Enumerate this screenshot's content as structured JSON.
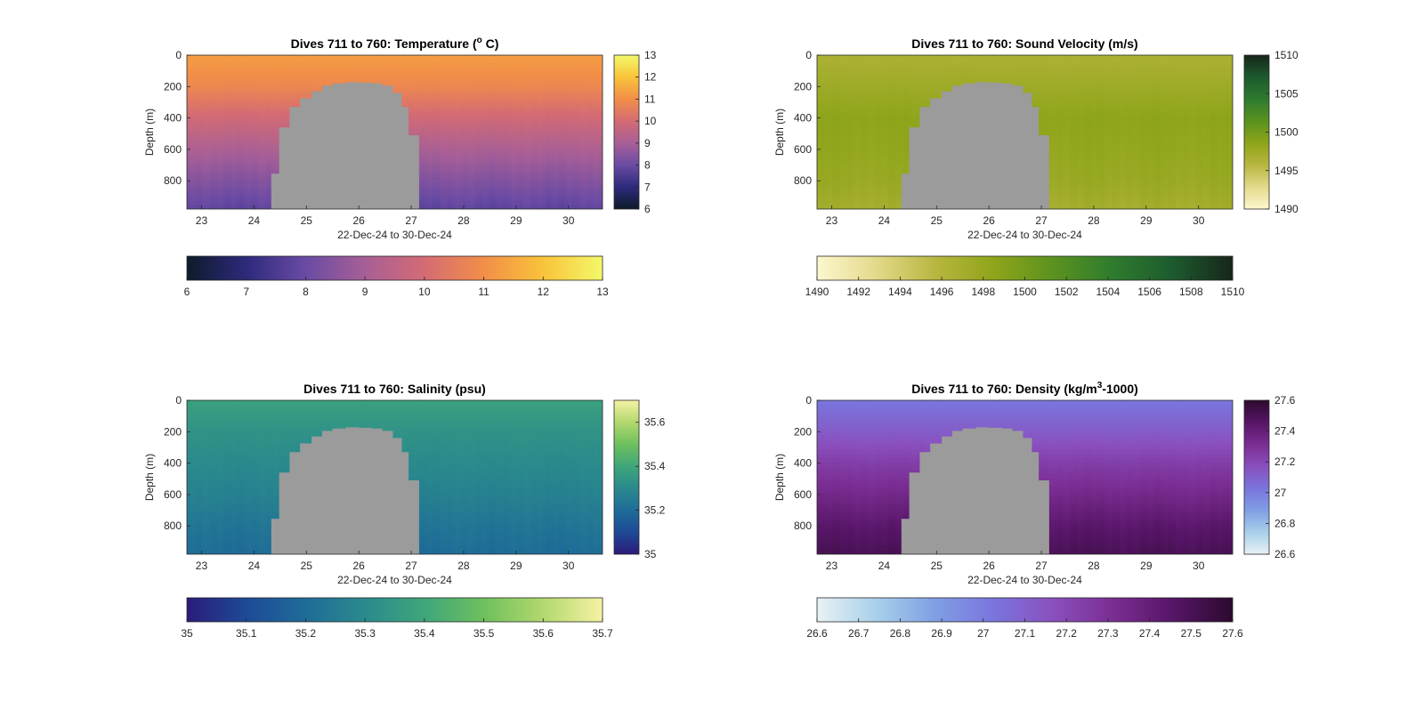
{
  "chart_data": [
    {
      "type": "heatmap",
      "variable": "temperature",
      "title": {
        "prefix": "Dives 711 to 760: Temperature (",
        "sup": "o",
        "suffix": " C)"
      },
      "xlabel": "22-Dec-24 to 30-Dec-24",
      "ylabel": "Depth (m)",
      "xlim": [
        22.72,
        30.65
      ],
      "ylim": [
        0,
        980
      ],
      "y_reversed": true,
      "x_ticks": [
        "23",
        "24",
        "25",
        "26",
        "27",
        "28",
        "29",
        "30"
      ],
      "y_ticks": [
        "0",
        "200",
        "400",
        "600",
        "800"
      ],
      "colorbar_right_ticks": [
        "13",
        "12",
        "11",
        "10",
        "9",
        "8",
        "7",
        "6"
      ],
      "colorbar_bottom_ticks": [
        "6",
        "7",
        "8",
        "9",
        "10",
        "11",
        "12",
        "13"
      ],
      "clim": [
        6,
        13
      ],
      "colormap": [
        "#0d1b2a",
        "#2d2a7c",
        "#6a4ba4",
        "#a75f96",
        "#d46b74",
        "#f28e48",
        "#f9c33a",
        "#f4f86a"
      ],
      "profile": [
        {
          "depth": 0,
          "value": 11.3
        },
        {
          "depth": 200,
          "value": 10.8
        },
        {
          "depth": 400,
          "value": 9.9
        },
        {
          "depth": 600,
          "value": 9.1
        },
        {
          "depth": 800,
          "value": 8.4
        },
        {
          "depth": 980,
          "value": 7.8
        }
      ],
      "no_data_color": "#9b9b9b"
    },
    {
      "type": "heatmap",
      "variable": "sound_velocity",
      "title": {
        "prefix": "Dives 711 to 760: Sound Velocity (m/s)",
        "sup": "",
        "suffix": ""
      },
      "xlabel": "22-Dec-24 to 30-Dec-24",
      "ylabel": "Depth (m)",
      "xlim": [
        22.72,
        30.65
      ],
      "ylim": [
        0,
        980
      ],
      "y_reversed": true,
      "x_ticks": [
        "23",
        "24",
        "25",
        "26",
        "27",
        "28",
        "29",
        "30"
      ],
      "y_ticks": [
        "0",
        "200",
        "400",
        "600",
        "800"
      ],
      "colorbar_right_ticks": [
        "1510",
        "1505",
        "1500",
        "1495",
        "1490"
      ],
      "colorbar_bottom_ticks": [
        "1490",
        "1492",
        "1494",
        "1496",
        "1498",
        "1500",
        "1502",
        "1504",
        "1506",
        "1508",
        "1510"
      ],
      "clim": [
        1490,
        1510
      ],
      "colormap": [
        "#fdf7cf",
        "#e3d98a",
        "#b8b63f",
        "#8ea41a",
        "#5a921f",
        "#2e7b2e",
        "#1d5a2e",
        "#17261a"
      ],
      "profile": [
        {
          "depth": 0,
          "value": 1496.5
        },
        {
          "depth": 200,
          "value": 1497.5
        },
        {
          "depth": 400,
          "value": 1498.5
        },
        {
          "depth": 600,
          "value": 1498.2
        },
        {
          "depth": 800,
          "value": 1497.8
        },
        {
          "depth": 980,
          "value": 1497.0
        }
      ],
      "no_data_color": "#9b9b9b"
    },
    {
      "type": "heatmap",
      "variable": "salinity",
      "title": {
        "prefix": "Dives 711 to 760: Salinity (psu)",
        "sup": "",
        "suffix": ""
      },
      "xlabel": "22-Dec-24 to 30-Dec-24",
      "ylabel": "Depth (m)",
      "xlim": [
        22.72,
        30.65
      ],
      "ylim": [
        0,
        980
      ],
      "y_reversed": true,
      "x_ticks": [
        "23",
        "24",
        "25",
        "26",
        "27",
        "28",
        "29",
        "30"
      ],
      "y_ticks": [
        "0",
        "200",
        "400",
        "600",
        "800"
      ],
      "colorbar_right_ticks": [
        "35.6",
        "35.4",
        "35.2",
        "35"
      ],
      "colorbar_bottom_ticks": [
        "35",
        "35.1",
        "35.2",
        "35.3",
        "35.4",
        "35.5",
        "35.6",
        "35.7"
      ],
      "clim": [
        35.0,
        35.7
      ],
      "colormap": [
        "#2a1b7a",
        "#1e4a96",
        "#1f6c98",
        "#2a8a8c",
        "#3fa67b",
        "#6ec05d",
        "#b2d86e",
        "#f6f2a4"
      ],
      "profile": [
        {
          "depth": 0,
          "value": 35.38
        },
        {
          "depth": 200,
          "value": 35.33
        },
        {
          "depth": 400,
          "value": 35.3
        },
        {
          "depth": 600,
          "value": 35.27
        },
        {
          "depth": 800,
          "value": 35.23
        },
        {
          "depth": 980,
          "value": 35.2
        }
      ],
      "no_data_color": "#9b9b9b"
    },
    {
      "type": "heatmap",
      "variable": "density",
      "title": {
        "prefix": "Dives 711 to 760: Density (kg/m",
        "sup": "3",
        "suffix": "-1000)"
      },
      "xlabel": "22-Dec-24 to 30-Dec-24",
      "ylabel": "Depth (m)",
      "xlim": [
        22.72,
        30.65
      ],
      "ylim": [
        0,
        980
      ],
      "y_reversed": true,
      "x_ticks": [
        "23",
        "24",
        "25",
        "26",
        "27",
        "28",
        "29",
        "30"
      ],
      "y_ticks": [
        "0",
        "200",
        "400",
        "600",
        "800"
      ],
      "colorbar_right_ticks": [
        "27.6",
        "27.4",
        "27.2",
        "27",
        "26.8",
        "26.6"
      ],
      "colorbar_bottom_ticks": [
        "26.6",
        "26.7",
        "26.8",
        "26.9",
        "27",
        "27.1",
        "27.2",
        "27.3",
        "27.4",
        "27.5",
        "27.6"
      ],
      "clim": [
        26.6,
        27.6
      ],
      "colormap": [
        "#e8f2f4",
        "#a8d0ea",
        "#7f9ee4",
        "#7a74dc",
        "#8a4fbd",
        "#7a2d92",
        "#561566",
        "#2c0a2e"
      ],
      "profile": [
        {
          "depth": 0,
          "value": 27.02
        },
        {
          "depth": 200,
          "value": 27.12
        },
        {
          "depth": 400,
          "value": 27.24
        },
        {
          "depth": 600,
          "value": 27.34
        },
        {
          "depth": 800,
          "value": 27.44
        },
        {
          "depth": 980,
          "value": 27.5
        }
      ],
      "no_data_color": "#9b9b9b"
    }
  ]
}
